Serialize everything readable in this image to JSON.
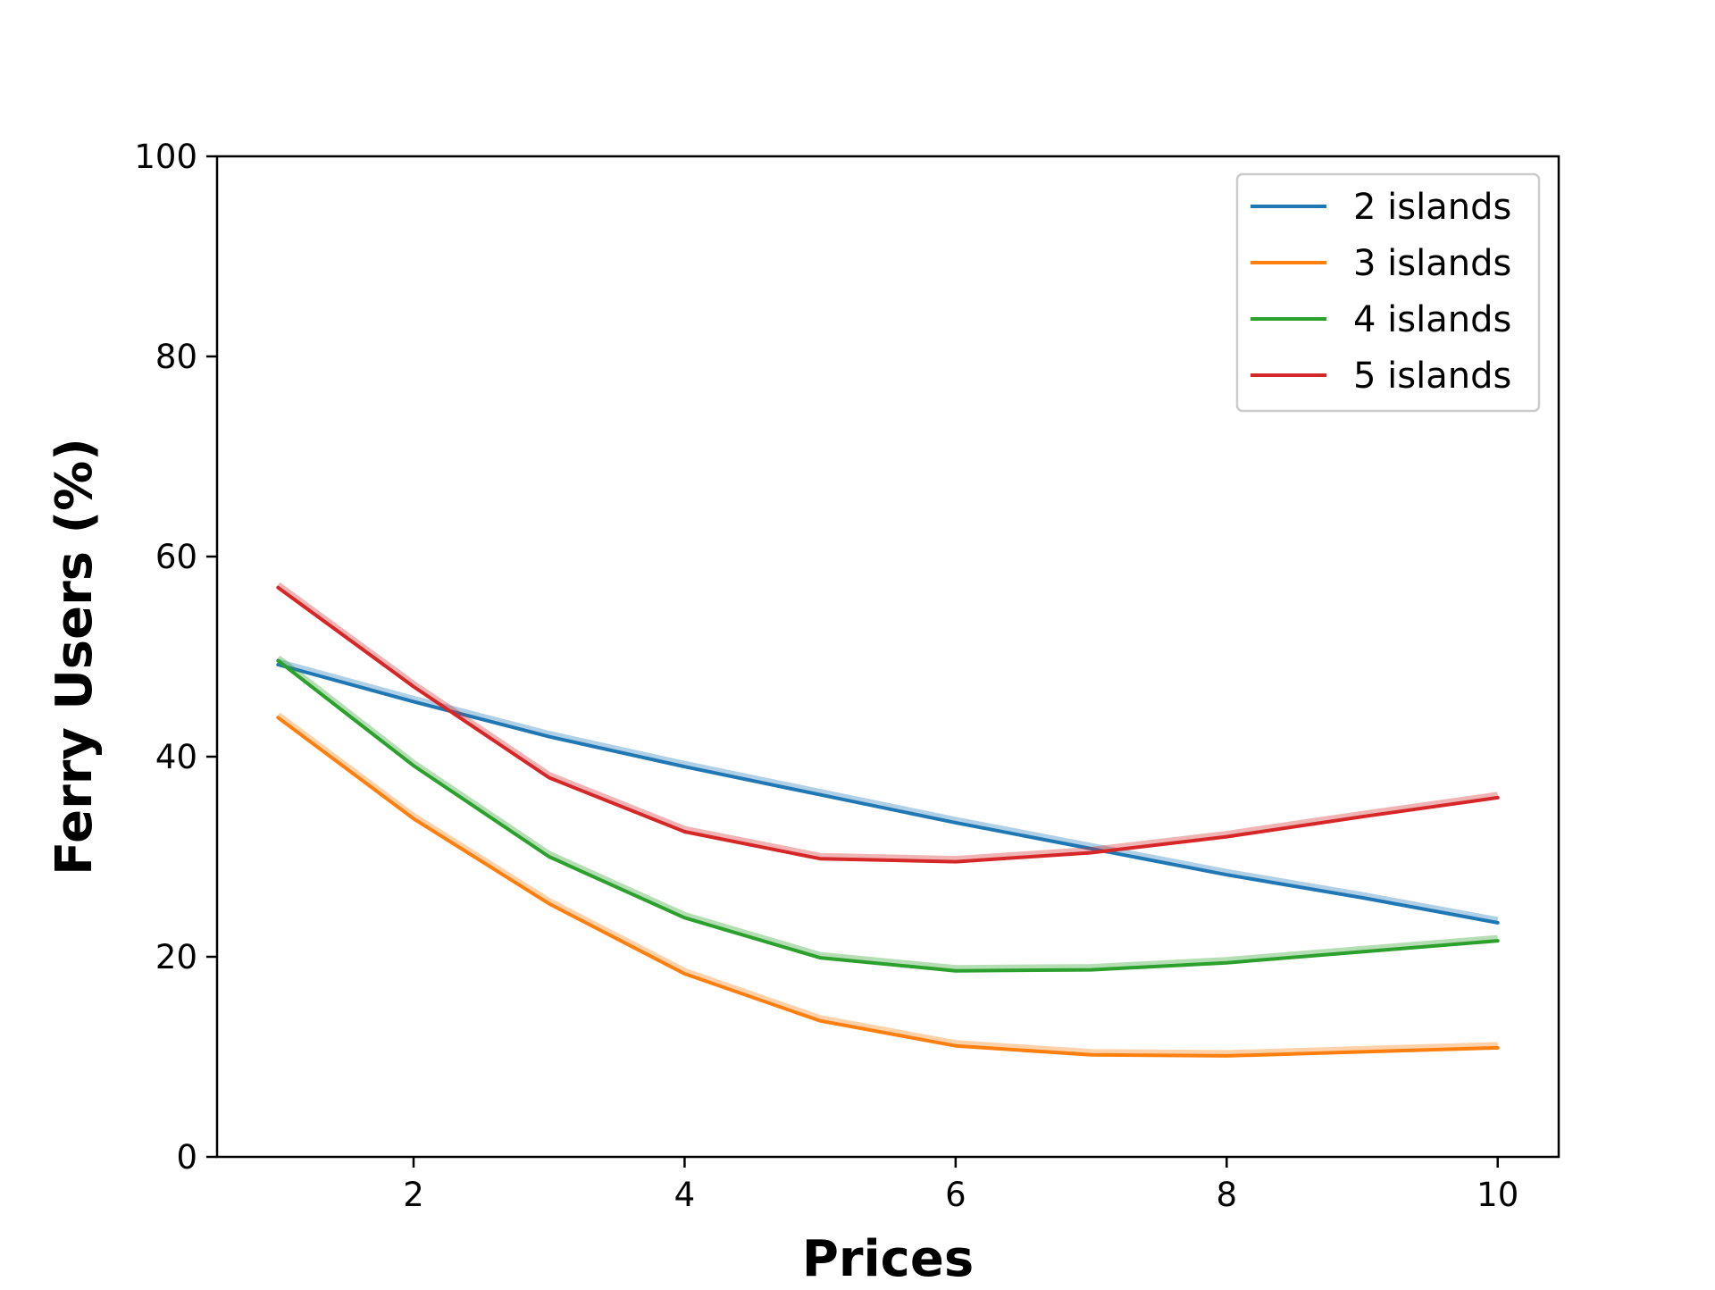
{
  "chart_data": {
    "type": "line",
    "title": "",
    "xlabel": "Prices",
    "ylabel": "Ferry Users (%)",
    "xlim": [
      0.55,
      10.45
    ],
    "ylim": [
      0,
      100
    ],
    "xticks": [
      2,
      4,
      6,
      8,
      10
    ],
    "yticks": [
      0,
      20,
      40,
      60,
      80,
      100
    ],
    "xtick_labels": [
      "2",
      "4",
      "6",
      "8",
      "10"
    ],
    "ytick_labels": [
      "0",
      "20",
      "40",
      "60",
      "80",
      "100"
    ],
    "grid": false,
    "legend_position": "top-right",
    "x": [
      1,
      2,
      3,
      4,
      5,
      6,
      7,
      8,
      9,
      10
    ],
    "series": [
      {
        "name": "2 islands",
        "color": "#1f77b4",
        "values": [
          49.2,
          45.5,
          42.0,
          39.0,
          36.2,
          33.4,
          30.8,
          28.2,
          25.9,
          23.4
        ]
      },
      {
        "name": "3 islands",
        "color": "#ff7f0e",
        "values": [
          43.9,
          33.8,
          25.3,
          18.3,
          13.6,
          11.1,
          10.2,
          10.1,
          10.5,
          10.9
        ]
      },
      {
        "name": "4 islands",
        "color": "#2ca02c",
        "values": [
          49.6,
          39.1,
          30.0,
          23.9,
          19.9,
          18.6,
          18.7,
          19.4,
          20.5,
          21.6
        ]
      },
      {
        "name": "5 islands",
        "color": "#d62728",
        "values": [
          56.9,
          47.0,
          37.9,
          32.5,
          29.8,
          29.5,
          30.4,
          32.0,
          34.0,
          35.9
        ]
      }
    ]
  }
}
